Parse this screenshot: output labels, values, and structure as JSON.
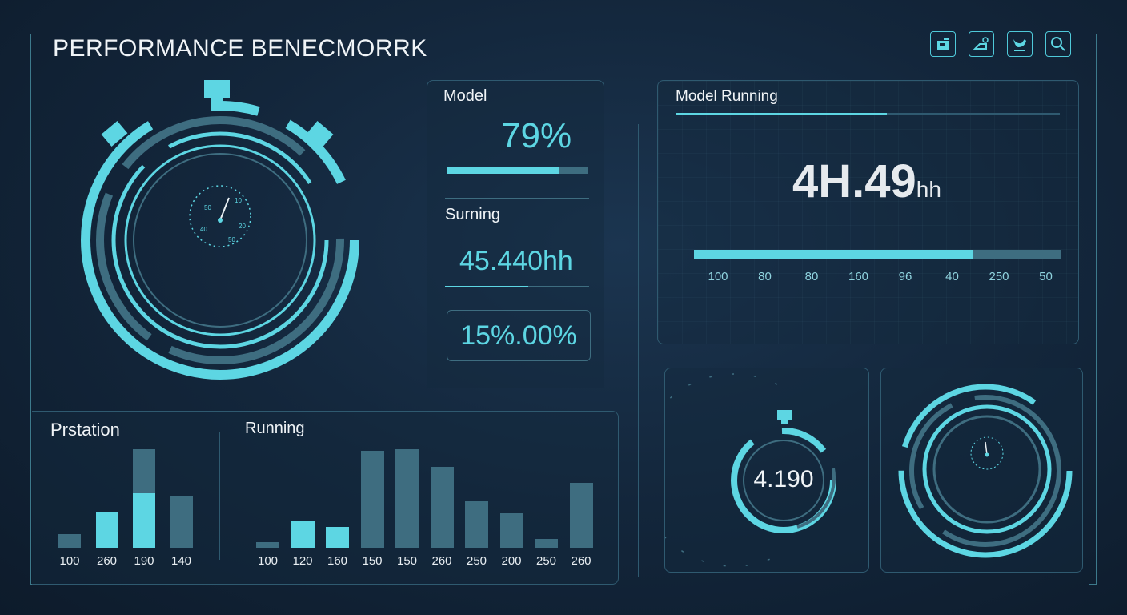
{
  "header": {
    "title": "PERFORMANCE BENECMORRK",
    "icons": [
      "gallery-icon",
      "share-icon",
      "twitter-icon",
      "search-icon"
    ]
  },
  "colors": {
    "accent": "#5dd6e3",
    "muted": "#3e6d80",
    "background": "#13263b"
  },
  "stopwatch_main": {
    "dial_labels": [
      "50",
      "10",
      "40",
      "20",
      "50"
    ]
  },
  "model_card": {
    "model_label": "Model",
    "model_value": "79%",
    "model_progress": 0.8,
    "surning_label": "Surning",
    "surning_value": "45.440hh",
    "surning_progress": 0.58,
    "percent_box": "15%.00%"
  },
  "model_running": {
    "label": "Model Running",
    "value": "4H.49",
    "unit": "hh",
    "progress": 0.76,
    "ticks": [
      "100",
      "80",
      "80",
      "160",
      "96",
      "40",
      "250",
      "50"
    ]
  },
  "small_timer": {
    "value": "4.190"
  },
  "prstation": {
    "label": "Prstation"
  },
  "running": {
    "label": "Running"
  },
  "chart_data": [
    {
      "type": "bar",
      "title": "Prstation",
      "categories": [
        "100",
        "260",
        "190",
        "140"
      ],
      "values": [
        14,
        37,
        100,
        53
      ],
      "highlighted_values": [
        0,
        37,
        55,
        0
      ]
    },
    {
      "type": "bar",
      "title": "Running",
      "categories": [
        "100",
        "120",
        "160",
        "150",
        "150",
        "260",
        "250",
        "200",
        "250",
        "260"
      ],
      "values": [
        6,
        28,
        21,
        98,
        100,
        82,
        47,
        35,
        9,
        66
      ],
      "highlighted": [
        false,
        true,
        true,
        false,
        false,
        false,
        false,
        false,
        false,
        false
      ]
    }
  ]
}
